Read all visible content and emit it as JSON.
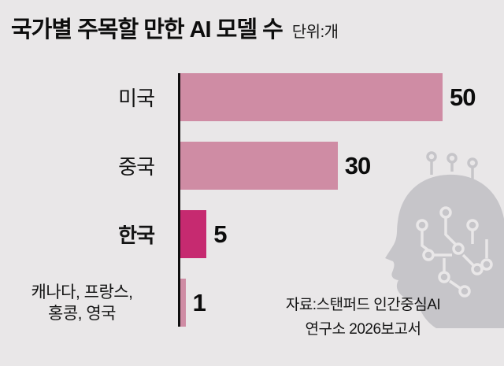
{
  "header": {
    "title": "국가별 주목할 만한 AI 모델 수",
    "unit_label": "단위:개"
  },
  "chart_data": {
    "type": "bar",
    "orientation": "horizontal",
    "title": "국가별 주목할 만한 AI 모델 수",
    "unit": "개",
    "categories": [
      "미국",
      "중국",
      "한국",
      "캐나다, 프랑스, 홍콩, 영국"
    ],
    "values": [
      50,
      30,
      5,
      1
    ],
    "category_display": [
      [
        "미국"
      ],
      [
        "중국"
      ],
      [
        "한국"
      ],
      [
        "캐나다, 프랑스,",
        "홍콩, 영국"
      ]
    ],
    "xlim": [
      0,
      50
    ],
    "highlight_index": 2,
    "bar_color": "#cf8ca4",
    "highlight_color": "#c62a70",
    "axis_color": "#0f0f0f",
    "background_color": "#e9e7e8",
    "grid": false,
    "legend": false,
    "value_labels": [
      50,
      30,
      5,
      1
    ],
    "source": "자료:스탠퍼드 인간중심AI 연구소 2026보고서"
  },
  "source": {
    "line1": "자료:스탠퍼드 인간중심AI",
    "line2": "연구소 2026보고서"
  },
  "icon": {
    "name": "ai-brain-head-icon"
  }
}
